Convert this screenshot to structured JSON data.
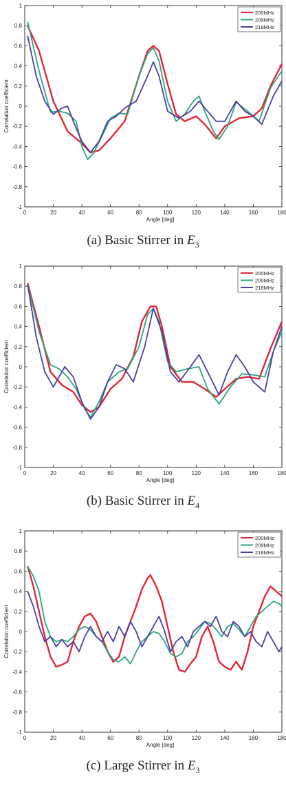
{
  "colors": {
    "s200": "#e32636",
    "s209": "#2aa57d",
    "s218": "#4a3fa0",
    "axis": "#333333"
  },
  "chart_data": [
    {
      "type": "line",
      "caption_label": "(a)",
      "caption_text": "Basic Stirrer in",
      "caption_var": "E",
      "caption_sub": "3",
      "xlabel": "Angle [deg]",
      "ylabel": "Correlation coefficient",
      "xlim": [
        0,
        180
      ],
      "ylim": [
        -1,
        1
      ],
      "xticks": [
        0,
        20,
        40,
        60,
        80,
        100,
        120,
        140,
        160,
        180
      ],
      "yticks": [
        -1,
        -0.8,
        -0.6,
        -0.4,
        -0.2,
        0,
        0.2,
        0.4,
        0.6,
        0.8,
        1
      ],
      "legend_position": "top-right",
      "series": [
        {
          "name": "200MHz",
          "x": [
            2,
            10,
            20,
            30,
            40,
            46,
            52,
            60,
            70,
            80,
            86,
            90,
            94,
            100,
            106,
            112,
            120,
            126,
            134,
            140,
            150,
            160,
            166,
            172,
            180
          ],
          "y": [
            0.8,
            0.55,
            0.05,
            -0.25,
            -0.37,
            -0.46,
            -0.44,
            -0.32,
            -0.15,
            0.3,
            0.55,
            0.6,
            0.55,
            0.22,
            -0.08,
            -0.15,
            -0.1,
            -0.18,
            -0.32,
            -0.2,
            -0.12,
            -0.1,
            -0.02,
            0.2,
            0.42
          ]
        },
        {
          "name": "209MHz",
          "x": [
            2,
            10,
            18,
            24,
            30,
            36,
            40,
            44,
            48,
            54,
            60,
            66,
            72,
            80,
            86,
            90,
            94,
            100,
            106,
            112,
            118,
            122,
            126,
            132,
            136,
            142,
            148,
            156,
            164,
            172,
            180
          ],
          "y": [
            0.84,
            0.35,
            -0.06,
            -0.05,
            -0.07,
            -0.15,
            -0.4,
            -0.53,
            -0.47,
            -0.3,
            -0.12,
            -0.07,
            -0.08,
            0.3,
            0.52,
            0.58,
            0.45,
            0.05,
            -0.15,
            -0.08,
            0.05,
            0.1,
            -0.05,
            -0.25,
            -0.33,
            -0.2,
            0.04,
            -0.05,
            -0.15,
            0.18,
            0.35
          ]
        },
        {
          "name": "218MHz",
          "x": [
            2,
            8,
            14,
            20,
            26,
            30,
            34,
            40,
            46,
            52,
            58,
            64,
            70,
            78,
            86,
            90,
            94,
            100,
            108,
            116,
            122,
            128,
            134,
            140,
            148,
            154,
            160,
            166,
            174,
            180
          ],
          "y": [
            0.7,
            0.3,
            0.05,
            -0.08,
            -0.02,
            0.0,
            -0.15,
            -0.35,
            -0.46,
            -0.35,
            -0.15,
            -0.1,
            -0.02,
            0.05,
            0.3,
            0.44,
            0.3,
            -0.05,
            -0.12,
            -0.05,
            0.05,
            -0.05,
            -0.15,
            -0.15,
            0.05,
            -0.05,
            -0.1,
            -0.18,
            0.1,
            0.25
          ]
        }
      ],
      "legend_entries": [
        "200MHz",
        "209MHz",
        "218MHz"
      ]
    },
    {
      "type": "line",
      "caption_label": "(b)",
      "caption_text": "Basic Stirrer in",
      "caption_var": "E",
      "caption_sub": "4",
      "xlabel": "Angle [deg]",
      "ylabel": "Correlation coefficient",
      "xlim": [
        0,
        180
      ],
      "ylim": [
        -1,
        1
      ],
      "xticks": [
        0,
        20,
        40,
        60,
        80,
        100,
        120,
        140,
        160,
        180
      ],
      "yticks": [
        -1,
        -0.8,
        -0.6,
        -0.4,
        -0.2,
        0,
        0.2,
        0.4,
        0.6,
        0.8,
        1
      ],
      "legend_position": "top-right",
      "series": [
        {
          "name": "200MHz",
          "x": [
            2,
            10,
            18,
            26,
            34,
            40,
            46,
            52,
            60,
            68,
            76,
            82,
            88,
            92,
            96,
            102,
            110,
            118,
            126,
            134,
            140,
            148,
            156,
            164,
            172,
            180
          ],
          "y": [
            0.83,
            0.4,
            -0.05,
            -0.18,
            -0.25,
            -0.38,
            -0.45,
            -0.4,
            -0.22,
            -0.12,
            0.1,
            0.45,
            0.6,
            0.6,
            0.4,
            0.0,
            -0.15,
            -0.15,
            -0.22,
            -0.3,
            -0.22,
            -0.12,
            -0.1,
            -0.12,
            0.18,
            0.45
          ]
        },
        {
          "name": "209MHz",
          "x": [
            2,
            10,
            18,
            24,
            30,
            36,
            42,
            46,
            52,
            58,
            66,
            72,
            80,
            86,
            90,
            94,
            100,
            106,
            114,
            122,
            128,
            136,
            144,
            152,
            160,
            168,
            174,
            180
          ],
          "y": [
            0.82,
            0.35,
            0.02,
            -0.02,
            -0.1,
            -0.22,
            -0.42,
            -0.5,
            -0.35,
            -0.15,
            -0.05,
            -0.02,
            0.2,
            0.52,
            0.58,
            0.45,
            0.05,
            -0.05,
            -0.02,
            0.0,
            -0.22,
            -0.37,
            -0.2,
            -0.07,
            -0.08,
            -0.1,
            0.15,
            0.35
          ]
        },
        {
          "name": "218MHz",
          "x": [
            2,
            8,
            14,
            20,
            28,
            34,
            40,
            46,
            52,
            58,
            64,
            70,
            76,
            84,
            90,
            96,
            102,
            108,
            116,
            122,
            128,
            136,
            142,
            148,
            154,
            160,
            168,
            174,
            180
          ],
          "y": [
            0.82,
            0.3,
            -0.05,
            -0.2,
            0.0,
            -0.1,
            -0.35,
            -0.52,
            -0.4,
            -0.15,
            0.02,
            -0.02,
            -0.15,
            0.2,
            0.58,
            0.35,
            -0.05,
            -0.15,
            0.0,
            0.12,
            -0.05,
            -0.28,
            -0.05,
            0.12,
            0.0,
            -0.15,
            -0.25,
            0.15,
            0.4
          ]
        }
      ],
      "legend_entries": [
        "200MHz",
        "209MHz",
        "218MHz"
      ]
    },
    {
      "type": "line",
      "caption_label": "(c)",
      "caption_text": "Large Stirrer in",
      "caption_var": "E",
      "caption_sub": "3",
      "xlabel": "Angle [deg]",
      "ylabel": "Correlation coefficient",
      "xlim": [
        0,
        180
      ],
      "ylim": [
        -1,
        1
      ],
      "xticks": [
        0,
        20,
        40,
        60,
        80,
        100,
        120,
        140,
        160,
        180
      ],
      "yticks": [
        -1,
        -0.8,
        -0.6,
        -0.4,
        -0.2,
        0,
        0.2,
        0.4,
        0.6,
        0.8,
        1
      ],
      "legend_position": "top-right",
      "series": [
        {
          "name": "200MHz",
          "x": [
            2,
            6,
            10,
            14,
            18,
            22,
            26,
            30,
            34,
            38,
            42,
            46,
            50,
            54,
            58,
            62,
            66,
            70,
            74,
            78,
            82,
            86,
            88,
            92,
            96,
            100,
            104,
            108,
            112,
            116,
            120,
            124,
            128,
            132,
            136,
            140,
            144,
            148,
            152,
            156,
            160,
            164,
            168,
            172,
            176,
            180
          ],
          "y": [
            0.65,
            0.45,
            0.2,
            -0.05,
            -0.25,
            -0.35,
            -0.33,
            -0.3,
            -0.1,
            0.05,
            0.15,
            0.18,
            0.1,
            -0.05,
            -0.2,
            -0.3,
            -0.25,
            -0.05,
            0.1,
            0.25,
            0.42,
            0.53,
            0.56,
            0.45,
            0.3,
            0.05,
            -0.2,
            -0.38,
            -0.4,
            -0.32,
            -0.25,
            -0.05,
            0.05,
            -0.1,
            -0.3,
            -0.35,
            -0.38,
            -0.3,
            -0.38,
            -0.2,
            0.05,
            0.2,
            0.35,
            0.45,
            0.4,
            0.35
          ]
        },
        {
          "name": "209MHz",
          "x": [
            2,
            6,
            10,
            14,
            18,
            22,
            26,
            30,
            34,
            38,
            42,
            46,
            50,
            54,
            58,
            62,
            66,
            70,
            74,
            78,
            82,
            86,
            90,
            94,
            98,
            102,
            106,
            110,
            114,
            118,
            122,
            126,
            130,
            134,
            138,
            142,
            146,
            150,
            154,
            158,
            162,
            166,
            170,
            174,
            178,
            180
          ],
          "y": [
            0.65,
            0.55,
            0.4,
            0.1,
            -0.05,
            -0.1,
            -0.08,
            -0.1,
            -0.05,
            0.02,
            0.05,
            0.02,
            -0.05,
            -0.1,
            -0.2,
            -0.28,
            -0.3,
            -0.25,
            -0.32,
            -0.2,
            -0.1,
            -0.05,
            0.0,
            -0.02,
            -0.1,
            -0.22,
            -0.25,
            -0.22,
            -0.1,
            -0.05,
            0.02,
            0.1,
            0.08,
            0.02,
            -0.05,
            0.05,
            0.08,
            0.02,
            -0.05,
            0.05,
            0.15,
            0.2,
            0.25,
            0.3,
            0.28,
            0.25
          ]
        },
        {
          "name": "218MHz",
          "x": [
            2,
            6,
            10,
            14,
            18,
            22,
            26,
            30,
            34,
            38,
            42,
            46,
            50,
            54,
            58,
            62,
            66,
            70,
            74,
            78,
            82,
            86,
            90,
            94,
            98,
            102,
            106,
            110,
            114,
            118,
            122,
            126,
            130,
            134,
            138,
            142,
            146,
            150,
            154,
            158,
            162,
            166,
            170,
            174,
            178,
            180
          ],
          "y": [
            0.4,
            0.25,
            0.05,
            -0.1,
            -0.05,
            -0.15,
            -0.08,
            -0.15,
            -0.1,
            -0.2,
            -0.05,
            0.05,
            -0.05,
            -0.1,
            0.0,
            -0.1,
            0.05,
            -0.05,
            0.1,
            0.0,
            -0.15,
            -0.05,
            0.05,
            0.15,
            0.0,
            -0.2,
            -0.1,
            -0.05,
            -0.15,
            0.0,
            0.05,
            0.1,
            0.05,
            0.15,
            0.0,
            -0.05,
            0.1,
            0.05,
            -0.05,
            0.0,
            -0.1,
            -0.15,
            0.0,
            -0.1,
            -0.2,
            -0.15
          ]
        }
      ],
      "legend_entries": [
        "200MHz",
        "209MHz",
        "218MHz"
      ]
    }
  ]
}
